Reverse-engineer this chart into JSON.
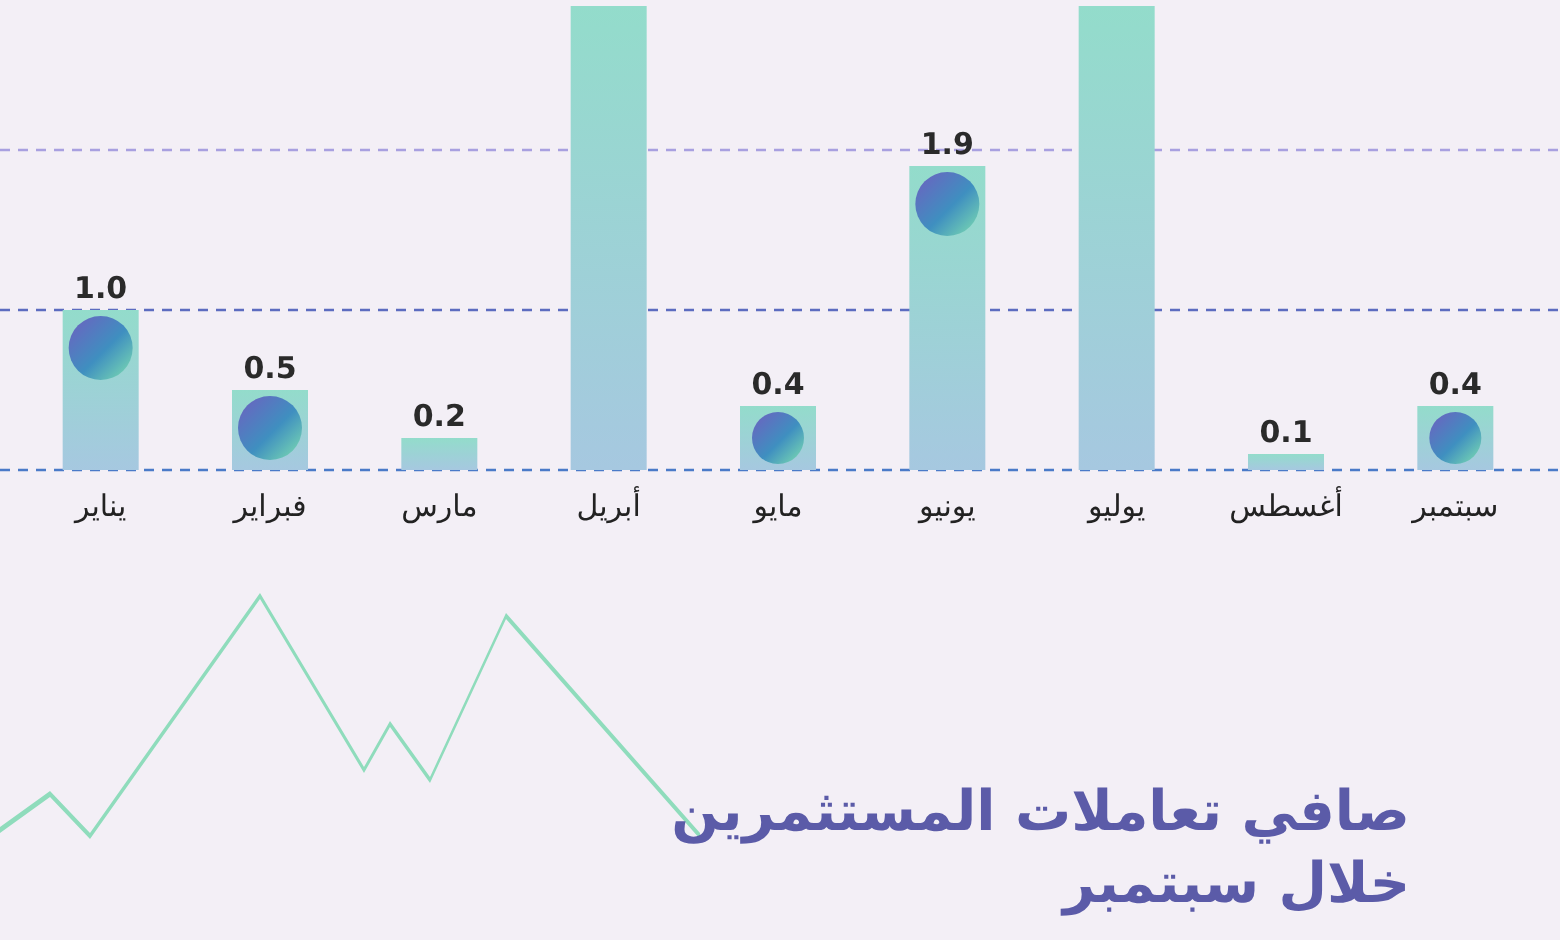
{
  "chart_data": {
    "type": "bar",
    "title": "صافي تعاملات المستثمرين\nخلال سبتمبر",
    "categories": [
      "يناير",
      "فبراير",
      "مارس",
      "أبريل",
      "مايو",
      "يونيو",
      "يوليو",
      "أغسطس",
      "سبتمبر"
    ],
    "values": [
      1.0,
      0.5,
      0.2,
      2.9,
      0.4,
      1.9,
      2.9,
      0.1,
      0.4
    ],
    "value_labels": [
      "1.0",
      "0.5",
      "0.2",
      null,
      "0.4",
      "1.9",
      null,
      "0.1",
      "0.4"
    ],
    "color": "#a6c8e0",
    "ylim": [
      0,
      2.9
    ],
    "ref_lines": [
      {
        "axis": "y",
        "value": 0,
        "color": "#4a7ac8",
        "line_style": "dashed"
      },
      {
        "axis": "y",
        "value": 1,
        "color": "#5c6cc0",
        "line_style": "dashed"
      },
      {
        "axis": "y",
        "value": 2,
        "color": "#a8a0e0",
        "line_style": "dashed"
      }
    ],
    "tick_labels": "x"
  }
}
